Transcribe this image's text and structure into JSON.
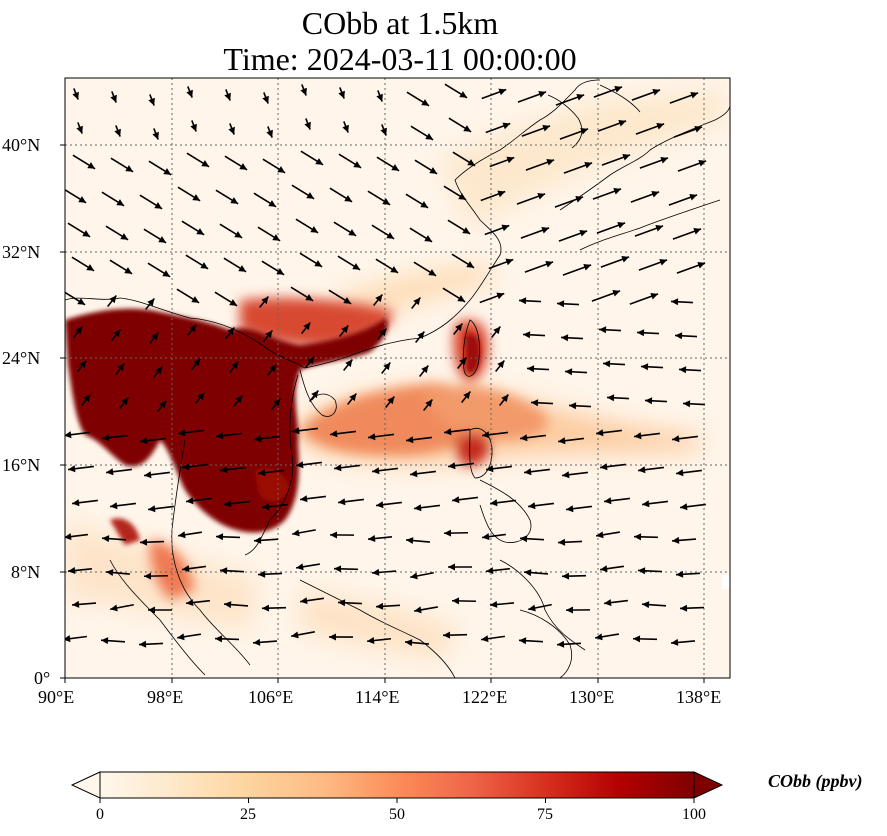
{
  "title": {
    "line1": "CObb at 1.5km",
    "line2": "Time: 2024-03-11 00:00:00"
  },
  "map": {
    "lon_range": [
      90,
      140
    ],
    "lat_range": [
      0,
      45
    ],
    "gridlines": "dotted",
    "x_ticks": [
      "90°E",
      "98°E",
      "106°E",
      "114°E",
      "122°E",
      "130°E",
      "138°E"
    ],
    "y_ticks": [
      "0°",
      "8°N",
      "16°N",
      "24°N",
      "32°N",
      "40°N"
    ],
    "field_name": "CObb",
    "wind_vectors": "black arrows"
  },
  "colorbar": {
    "label": "CObb (ppbv)",
    "ticks": [
      "0",
      "25",
      "50",
      "75",
      "100"
    ],
    "range": [
      0,
      100
    ],
    "extend": "both",
    "colormap": "OrRd",
    "colors": [
      "#fff7ec",
      "#fee8c8",
      "#fdd49e",
      "#fdbb84",
      "#fc8d59",
      "#ef6548",
      "#d7301f",
      "#b30000",
      "#7f0000"
    ]
  }
}
